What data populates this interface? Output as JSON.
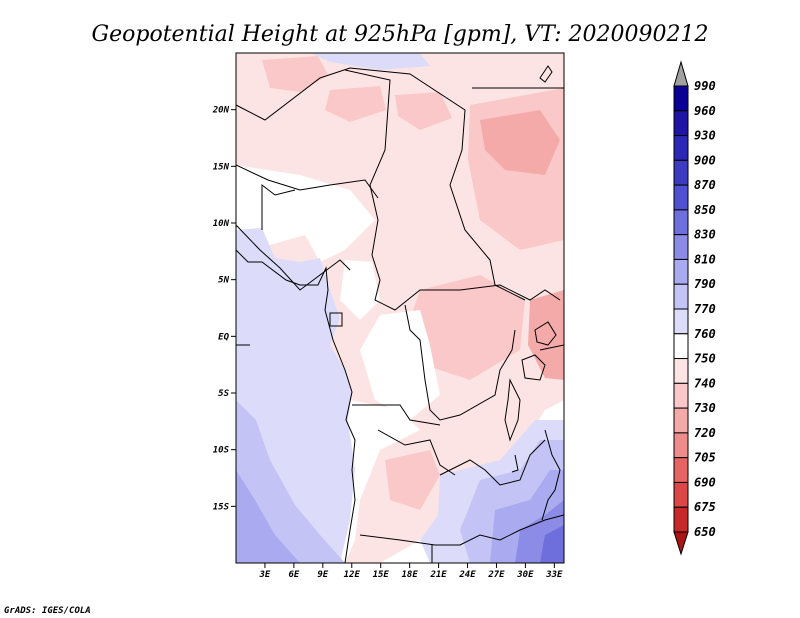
{
  "title": "Geopotential Height at 925hPa [gpm], VT: 2020090212",
  "footer": "GrADS: IGES/COLA",
  "map": {
    "lon_range": [
      0,
      34
    ],
    "lat_range": [
      -20,
      25
    ],
    "lat_ticks": [
      {
        "value": 20,
        "label": "20N"
      },
      {
        "value": 15,
        "label": "15N"
      },
      {
        "value": 10,
        "label": "10N"
      },
      {
        "value": 5,
        "label": "5N"
      },
      {
        "value": 0,
        "label": "EQ"
      },
      {
        "value": -5,
        "label": "5S"
      },
      {
        "value": -10,
        "label": "10S"
      },
      {
        "value": -15,
        "label": "15S"
      }
    ],
    "lon_ticks": [
      {
        "value": 3,
        "label": "3E"
      },
      {
        "value": 6,
        "label": "6E"
      },
      {
        "value": 9,
        "label": "9E"
      },
      {
        "value": 12,
        "label": "12E"
      },
      {
        "value": 15,
        "label": "15E"
      },
      {
        "value": 18,
        "label": "18E"
      },
      {
        "value": 21,
        "label": "21E"
      },
      {
        "value": 24,
        "label": "24E"
      },
      {
        "value": 27,
        "label": "27E"
      },
      {
        "value": 30,
        "label": "30E"
      },
      {
        "value": 33,
        "label": "33E"
      }
    ]
  },
  "colorbar": {
    "levels": [
      {
        "label": "990",
        "color": "#0a0096"
      },
      {
        "label": "960",
        "color": "#1e14a6"
      },
      {
        "label": "930",
        "color": "#2a28b4"
      },
      {
        "label": "900",
        "color": "#3c3cc3"
      },
      {
        "label": "870",
        "color": "#5050d2"
      },
      {
        "label": "850",
        "color": "#6e6edc"
      },
      {
        "label": "830",
        "color": "#8c8ce6"
      },
      {
        "label": "810",
        "color": "#aaaaf0"
      },
      {
        "label": "790",
        "color": "#c3c3f5"
      },
      {
        "label": "770",
        "color": "#dcdcfa"
      },
      {
        "label": "760",
        "color": "#ffffff"
      },
      {
        "label": "750",
        "color": "#fde4e4"
      },
      {
        "label": "740",
        "color": "#fac8c8"
      },
      {
        "label": "730",
        "color": "#f5aaaa"
      },
      {
        "label": "720",
        "color": "#ee8c8c"
      },
      {
        "label": "705",
        "color": "#e66464"
      },
      {
        "label": "690",
        "color": "#dc4646"
      },
      {
        "label": "675",
        "color": "#c82828"
      },
      {
        "label": "650",
        "color": "#aa1414"
      }
    ],
    "top_arrow_color": "#a0a0a0",
    "bottom_arrow_color": "#aa1414"
  }
}
